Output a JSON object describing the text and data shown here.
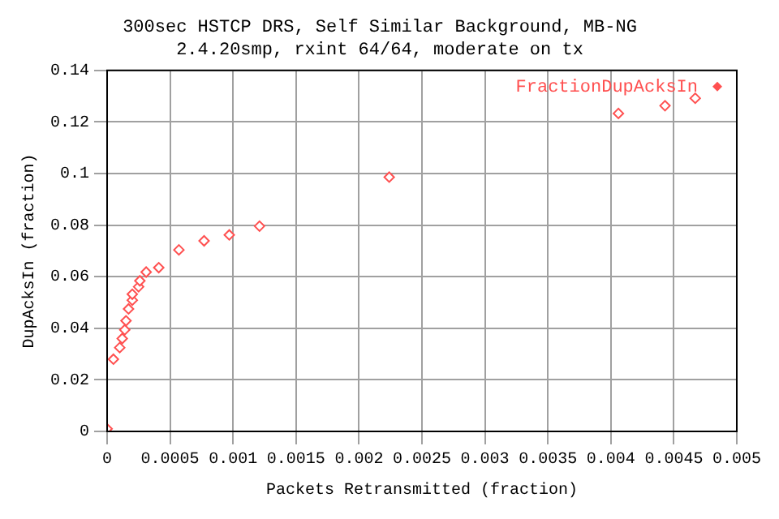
{
  "chart_data": {
    "type": "scatter",
    "title": "300sec HSTCP DRS, Self Similar Background, MB-NG",
    "subtitle": "2.4.20smp, rxint 64/64, moderate on tx",
    "xlabel": "Packets Retransmitted (fraction)",
    "ylabel": "DupAcksIn (fraction)",
    "series": [
      {
        "name": "FractionDupAcksIn",
        "color": "#ff5050",
        "x": [
          0,
          5e-05,
          0.0001,
          0.00012,
          0.00014,
          0.00015,
          0.00017,
          0.0002,
          0.0002,
          0.00025,
          0.00026,
          0.00031,
          0.0004,
          0.00041,
          0.00057,
          0.00077,
          0.00097,
          0.00121,
          0.00224,
          0.00406,
          0.00443,
          0.00467
        ],
        "values": [
          0.001,
          0.028,
          0.0325,
          0.036,
          0.0394,
          0.0429,
          0.0475,
          0.0509,
          0.0532,
          0.0561,
          0.0584,
          0.0618,
          null,
          0.0635,
          0.0704,
          0.0739,
          0.0762,
          0.0796,
          0.0986,
          0.1233,
          0.1263,
          0.1292
        ]
      }
    ],
    "xlim": [
      0,
      0.005
    ],
    "xticks": [
      0,
      0.0005,
      0.001,
      0.0015,
      0.002,
      0.0025,
      0.003,
      0.0035,
      0.004,
      0.0045,
      0.005
    ],
    "ylim": [
      0,
      0.14
    ],
    "yticks": [
      0,
      0.02,
      0.04,
      0.06,
      0.08,
      0.1,
      0.12,
      0.14
    ],
    "grid": true,
    "legend": "top right",
    "marker": "diamond"
  }
}
